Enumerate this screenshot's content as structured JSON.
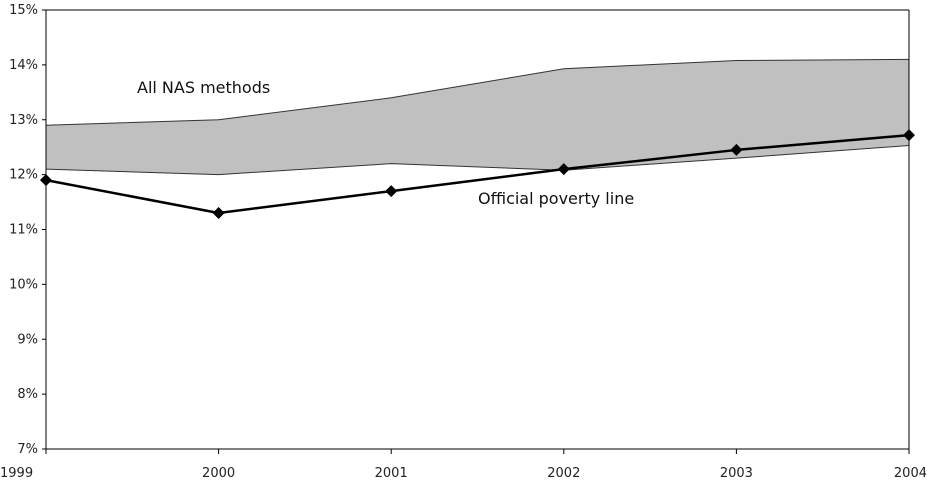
{
  "chart_data": {
    "type": "line",
    "title": "",
    "xlabel": "",
    "ylabel": "",
    "x": [
      "1999",
      "2000",
      "2001",
      "2002",
      "2003",
      "2004"
    ],
    "ylim": [
      7,
      15
    ],
    "y_ticks": [
      "7%",
      "8%",
      "9%",
      "10%",
      "11%",
      "12%",
      "13%",
      "14%",
      "15%"
    ],
    "grid": false,
    "band": {
      "name": "All NAS methods",
      "lower": [
        12.1,
        12.0,
        12.2,
        12.08,
        12.3,
        12.53
      ],
      "upper": [
        12.9,
        13.0,
        13.4,
        13.93,
        14.08,
        14.1
      ],
      "fill_color": "#c0c0c0"
    },
    "series": [
      {
        "name": "Official poverty line",
        "values": [
          11.9,
          11.3,
          11.7,
          12.1,
          12.45,
          12.72
        ],
        "color": "#000000",
        "marker": "diamond"
      }
    ],
    "annotations": [
      "All NAS methods",
      "Official poverty line"
    ]
  }
}
